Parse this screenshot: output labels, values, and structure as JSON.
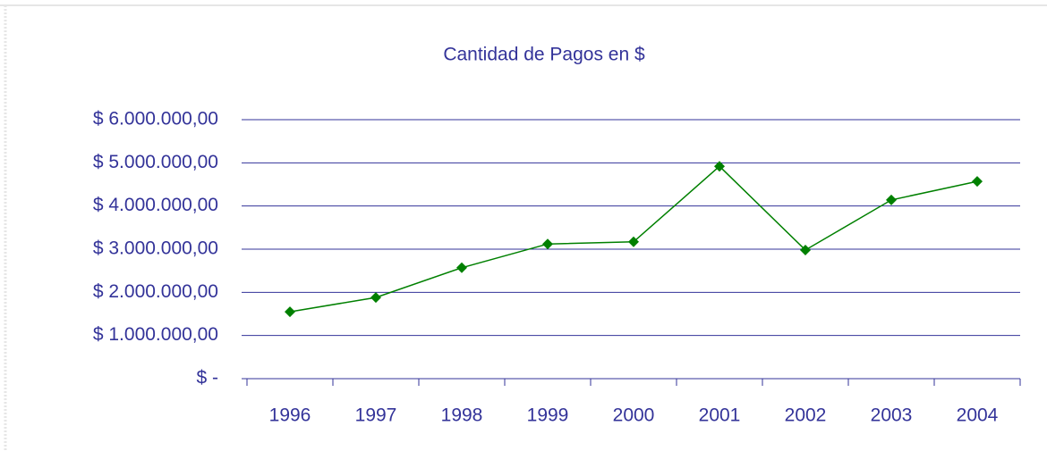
{
  "chart_data": {
    "type": "line",
    "title": "Cantidad de Pagos en $",
    "categories": [
      "1996",
      "1997",
      "1998",
      "1999",
      "2000",
      "2001",
      "2002",
      "2003",
      "2004"
    ],
    "series": [
      {
        "name": "Cantidad de Pagos",
        "color": "#008000",
        "values": [
          1550000,
          1880000,
          2570000,
          3120000,
          3170000,
          4920000,
          2980000,
          4140000,
          4570000
        ]
      }
    ],
    "ylim": [
      0,
      6000000
    ],
    "yticks": [
      {
        "value": 0,
        "label": "$ -"
      },
      {
        "value": 1000000,
        "label": "$ 1.000.000,00"
      },
      {
        "value": 2000000,
        "label": "$ 2.000.000,00"
      },
      {
        "value": 3000000,
        "label": "$ 3.000.000,00"
      },
      {
        "value": 4000000,
        "label": "$ 4.000.000,00"
      },
      {
        "value": 5000000,
        "label": "$ 5.000.000,00"
      },
      {
        "value": 6000000,
        "label": "$ 6.000.000,00"
      }
    ],
    "grid": true
  }
}
